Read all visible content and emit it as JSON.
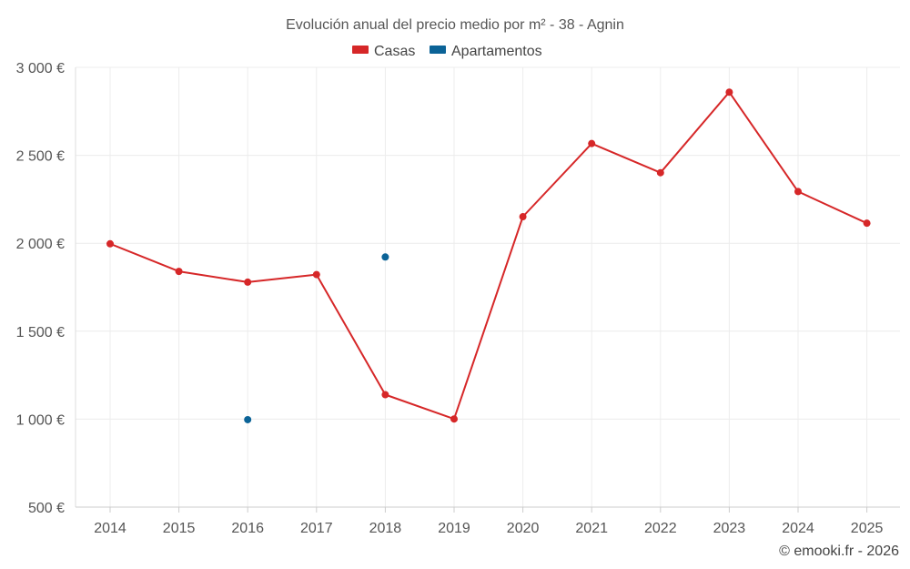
{
  "chart_data": {
    "type": "line",
    "title": "Evolución anual del precio medio por m² - 38 - Agnin",
    "categories": [
      "2014",
      "2015",
      "2016",
      "2017",
      "2018",
      "2019",
      "2020",
      "2021",
      "2022",
      "2023",
      "2024",
      "2025"
    ],
    "series": [
      {
        "name": "Casas",
        "color": "#d62728",
        "values": [
          1997,
          1840,
          1779,
          1822,
          1139,
          1001,
          2151,
          2567,
          2401,
          2859,
          2294,
          2114
        ]
      },
      {
        "name": "Apartamentos",
        "color": "#0b6397",
        "values": [
          null,
          null,
          997,
          null,
          1922,
          null,
          null,
          null,
          null,
          null,
          null,
          null
        ]
      }
    ],
    "ylim": [
      500,
      3000
    ],
    "yticks": [
      500,
      1000,
      1500,
      2000,
      2500,
      3000
    ],
    "ytick_labels": [
      "500 €",
      "1 000 €",
      "1 500 €",
      "2 000 €",
      "2 500 €",
      "3 000 €"
    ],
    "xlabel": "",
    "ylabel": "",
    "grid": true,
    "legend_position": "top-center"
  },
  "credit": "© emooki.fr - 2026"
}
